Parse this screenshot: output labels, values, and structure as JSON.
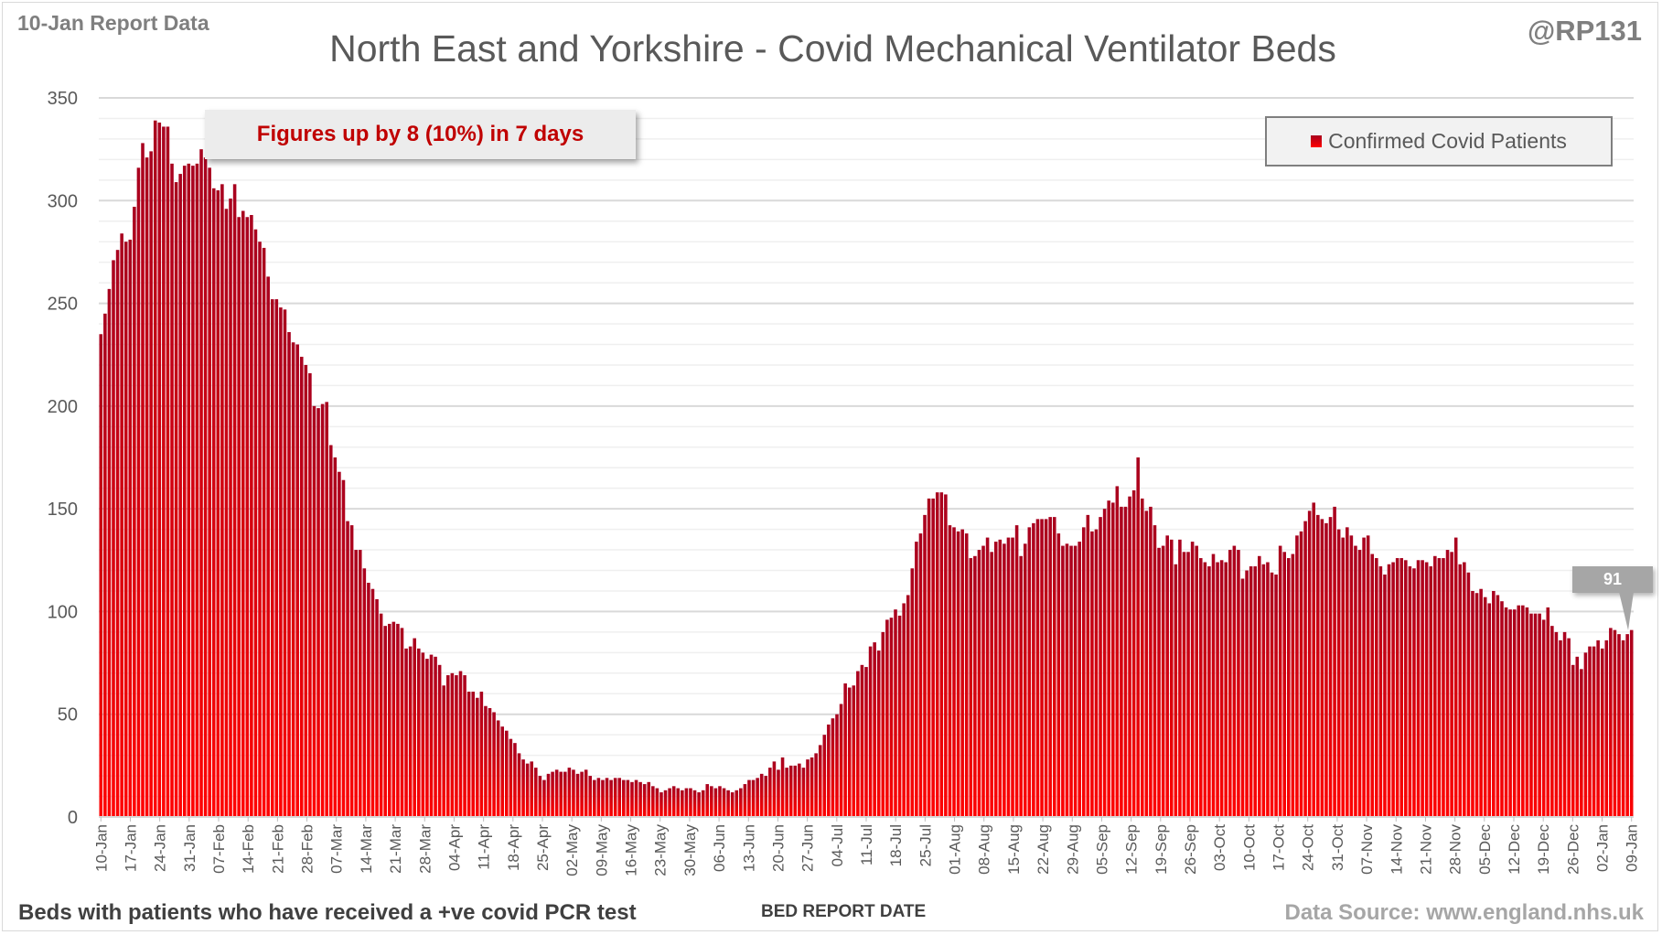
{
  "header": {
    "report_date": "10-Jan Report Data",
    "title": "North East and Yorkshire - Covid Mechanical Ventilator Beds",
    "handle": "@RP131"
  },
  "annotation": "Figures up by 8 (10%) in 7 days",
  "footer": {
    "note": "Beds with patients who have received a +ve covid PCR test",
    "source": "Data Source: www.england.nhs.uk"
  },
  "colors": {
    "bar_top": "#a8001e",
    "bar_bottom": "#ff0000",
    "annotation_text": "#c00000"
  },
  "chart_data": {
    "type": "bar",
    "title": "North East and Yorkshire - Covid Mechanical Ventilator Beds",
    "xlabel": "BED REPORT DATE",
    "ylabel": "",
    "ylim": [
      0,
      350
    ],
    "y_ticks": [
      0,
      50,
      100,
      150,
      200,
      250,
      300,
      350
    ],
    "y_tick_labels": [
      "0",
      "50",
      "100",
      "150",
      "200",
      "250",
      "300",
      "350"
    ],
    "grid": true,
    "legend": {
      "position": "top-right",
      "entries": [
        "Confirmed Covid Patients"
      ]
    },
    "last_value_label": "91",
    "x_tick_labels": [
      "10-Jan",
      "17-Jan",
      "24-Jan",
      "31-Jan",
      "07-Feb",
      "14-Feb",
      "21-Feb",
      "28-Feb",
      "07-Mar",
      "14-Mar",
      "21-Mar",
      "28-Mar",
      "04-Apr",
      "11-Apr",
      "18-Apr",
      "25-Apr",
      "02-May",
      "09-May",
      "16-May",
      "23-May",
      "30-May",
      "06-Jun",
      "13-Jun",
      "20-Jun",
      "27-Jun",
      "04-Jul",
      "11-Jul",
      "18-Jul",
      "25-Jul",
      "01-Aug",
      "08-Aug",
      "15-Aug",
      "22-Aug",
      "29-Aug",
      "05-Sep",
      "12-Sep",
      "19-Sep",
      "26-Sep",
      "03-Oct",
      "10-Oct",
      "17-Oct",
      "24-Oct",
      "31-Oct",
      "07-Nov",
      "14-Nov",
      "21-Nov",
      "28-Nov",
      "05-Dec",
      "12-Dec",
      "19-Dec",
      "26-Dec",
      "02-Jan",
      "09-Jan"
    ],
    "series": [
      {
        "name": "Confirmed Covid Patients",
        "values": [
          235,
          245,
          257,
          271,
          276,
          284,
          280,
          281,
          297,
          316,
          328,
          321,
          324,
          339,
          338,
          336,
          336,
          318,
          309,
          313,
          317,
          318,
          317,
          318,
          325,
          321,
          316,
          306,
          305,
          308,
          296,
          301,
          308,
          292,
          295,
          292,
          293,
          286,
          280,
          277,
          263,
          252,
          252,
          248,
          247,
          236,
          231,
          230,
          224,
          220,
          216,
          200,
          199,
          201,
          202,
          181,
          175,
          168,
          164,
          144,
          142,
          130,
          130,
          121,
          114,
          111,
          106,
          99,
          93,
          94,
          95,
          94,
          92,
          82,
          83,
          87,
          82,
          80,
          77,
          79,
          78,
          74,
          64,
          69,
          70,
          69,
          71,
          69,
          61,
          61,
          58,
          61,
          54,
          53,
          51,
          47,
          44,
          42,
          38,
          36,
          31,
          28,
          26,
          27,
          24,
          20,
          18,
          21,
          22,
          23,
          22,
          22,
          24,
          23,
          21,
          22,
          23,
          20,
          18,
          19,
          18,
          19,
          18,
          19,
          19,
          18,
          18,
          17,
          18,
          17,
          16,
          17,
          15,
          14,
          12,
          13,
          14,
          15,
          14,
          13,
          14,
          14,
          13,
          12,
          13,
          16,
          15,
          14,
          15,
          14,
          13,
          12,
          13,
          14,
          16,
          18,
          18,
          19,
          21,
          20,
          24,
          27,
          23,
          29,
          24,
          25,
          25,
          26,
          24,
          28,
          29,
          31,
          35,
          40,
          45,
          48,
          50,
          55,
          65,
          63,
          64,
          71,
          74,
          73,
          83,
          85,
          81,
          90,
          96,
          97,
          101,
          98,
          104,
          108,
          121,
          134,
          138,
          147,
          155,
          155,
          158,
          158,
          157,
          142,
          141,
          139,
          140,
          138,
          126,
          127,
          130,
          132,
          136,
          129,
          134,
          135,
          133,
          136,
          136,
          142,
          127,
          133,
          141,
          143,
          145,
          145,
          145,
          146,
          146,
          138,
          132,
          133,
          132,
          132,
          134,
          141,
          147,
          139,
          140,
          146,
          150,
          154,
          153,
          161,
          151,
          151,
          156,
          159,
          175,
          155,
          149,
          151,
          142,
          131,
          132,
          137,
          135,
          123,
          135,
          129,
          129,
          134,
          132,
          126,
          124,
          122,
          128,
          124,
          125,
          124,
          130,
          132,
          130,
          116,
          120,
          122,
          122,
          127,
          123,
          124,
          119,
          118,
          132,
          129,
          126,
          128,
          137,
          139,
          144,
          149,
          153,
          147,
          145,
          143,
          146,
          151,
          140,
          136,
          141,
          137,
          132,
          130,
          136,
          137,
          128,
          126,
          122,
          118,
          123,
          124,
          126,
          126,
          125,
          122,
          121,
          125,
          125,
          124,
          122,
          127,
          126,
          126,
          130,
          129,
          136,
          123,
          124,
          119,
          110,
          109,
          111,
          107,
          104,
          110,
          108,
          105,
          102,
          101,
          101,
          103,
          103,
          102,
          99,
          99,
          99,
          96,
          102,
          93,
          90,
          86,
          90,
          87,
          74,
          78,
          72,
          80,
          83,
          83,
          86,
          82,
          86,
          92,
          91,
          89,
          86,
          89,
          91
        ]
      }
    ]
  }
}
